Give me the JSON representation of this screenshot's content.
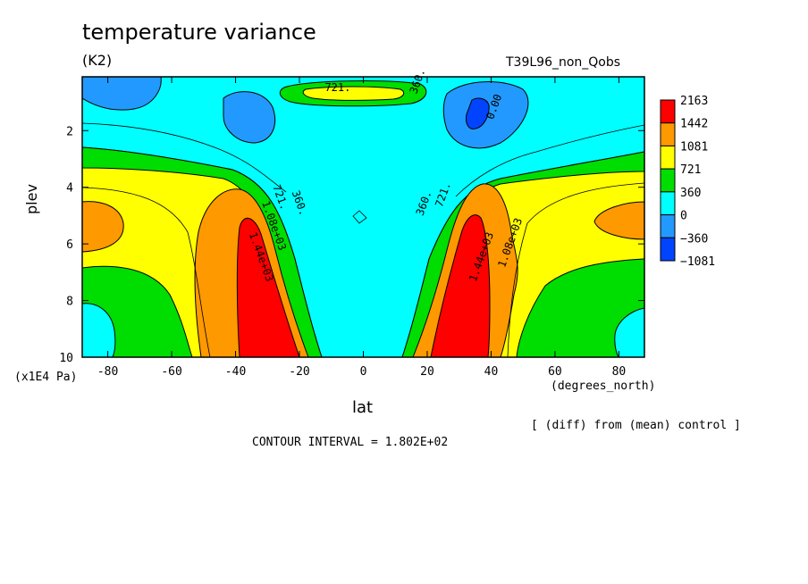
{
  "chart_data": {
    "type": "heatmap",
    "title": "temperature variance",
    "units": "(K2)",
    "run_label": "T39L96_non_Qobs",
    "xlabel": "lat",
    "x_units": "(degrees_north)",
    "ylabel": "plev",
    "y_units": "(x1E4 Pa)",
    "xlim": [
      -88,
      88
    ],
    "ylim": [
      10,
      0.1
    ],
    "y_axis_inverted": true,
    "x_ticks": [
      "-80",
      "-60",
      "-40",
      "-20",
      "0",
      "20",
      "40",
      "60",
      "80"
    ],
    "y_ticks": [
      "2",
      "4",
      "6",
      "8",
      "10"
    ],
    "colorbar": {
      "labels": [
        "2163",
        "1442",
        "1081",
        "721",
        "360",
        "0",
        "−360",
        "−1081"
      ],
      "colors": [
        "#ff0000",
        "#ff9900",
        "#ffff00",
        "#00dd00",
        "#00ffff",
        "#2299ff",
        "#0044ff"
      ]
    },
    "contour_labels": [
      {
        "text": "721.",
        "lon": -8,
        "plev": 0.6
      },
      {
        "text": "360.",
        "lon": 18,
        "plev": 0.3
      },
      {
        "text": "0.00",
        "lon": 42,
        "plev": 1.2
      },
      {
        "text": "721.",
        "lon": -27,
        "plev": 4.4
      },
      {
        "text": "360.",
        "lon": -21,
        "plev": 4.6
      },
      {
        "text": "1.08e+03",
        "lon": -29,
        "plev": 5.4
      },
      {
        "text": "1.44e+03",
        "lon": -33,
        "plev": 6.5
      },
      {
        "text": "360.",
        "lon": 20,
        "plev": 4.6
      },
      {
        "text": "721.",
        "lon": 26,
        "plev": 4.3
      },
      {
        "text": "1.44e+03",
        "lon": 38,
        "plev": 6.5
      },
      {
        "text": "1.08e+03",
        "lon": 47,
        "plev": 6.0
      }
    ],
    "footnote": "[ (diff) from (mean) control ]",
    "contour_interval": "CONTOUR INTERVAL = 1.802E+02"
  }
}
